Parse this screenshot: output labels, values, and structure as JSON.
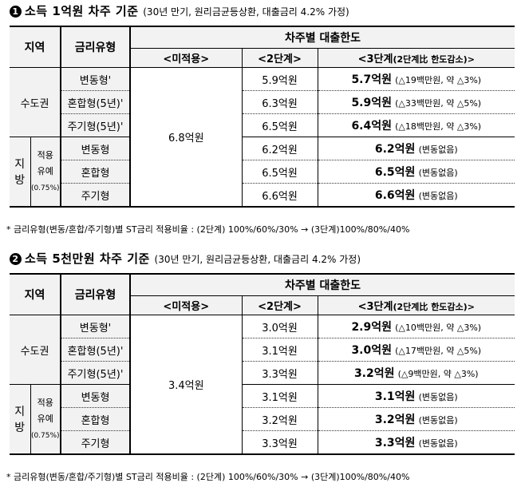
{
  "footnote": "* 금리유형(변동/혼합/주기형)별 ST금리 적용비율 : (2단계) 100%/60%/30% → (3단계)100%/80%/40%",
  "header": {
    "region": "지역",
    "rate_type": "금리유형",
    "limit": "차주별 대출한도",
    "col_none": "<미적용>",
    "col_2": "<2단계>",
    "col_3": "<3단계",
    "col_3_note": "(2단계比 한도감소)>",
    "capital": "수도권",
    "local": "지 방",
    "local_note1": "적용",
    "local_note2": "유예",
    "local_note3": "(0.75%)"
  },
  "types": [
    "변동형'",
    "혼합형(5년)'",
    "주기형(5년)'",
    "변동형",
    "혼합형",
    "주기형"
  ],
  "sections": [
    {
      "num": "1",
      "title": "소득 1억원 차주 기준",
      "subtitle": "(30년 만기, 원리금균등상환, 대출금리 4.2% 가정)",
      "none": "6.8억원",
      "stage2": [
        "5.9억원",
        "6.3억원",
        "6.5억원",
        "6.2억원",
        "6.5억원",
        "6.6억원"
      ],
      "stage3": [
        "5.7억원",
        "5.9억원",
        "6.4억원",
        "6.2억원",
        "6.5억원",
        "6.6억원"
      ],
      "stage3_note": [
        "(△19백만원, 약 △3%)",
        "(△33백만원, 약 △5%)",
        "(△18백만원, 약 △3%)",
        "(변동없음)",
        "(변동없음)",
        "(변동없음)"
      ]
    },
    {
      "num": "2",
      "title": "소득 5천만원 차주 기준",
      "subtitle": "(30년 만기, 원리금균등상환, 대출금리 4.2% 가정)",
      "none": "3.4억원",
      "stage2": [
        "3.0억원",
        "3.1억원",
        "3.3억원",
        "3.1억원",
        "3.2억원",
        "3.3억원"
      ],
      "stage3": [
        "2.9억원",
        "3.0억원",
        "3.2억원",
        "3.1억원",
        "3.2억원",
        "3.3억원"
      ],
      "stage3_note": [
        "(△10백만원, 약 △3%)",
        "(△17백만원, 약 △5%)",
        "(△9백만원, 약 △3%)",
        "(변동없음)",
        "(변동없음)",
        "(변동없음)"
      ]
    }
  ]
}
